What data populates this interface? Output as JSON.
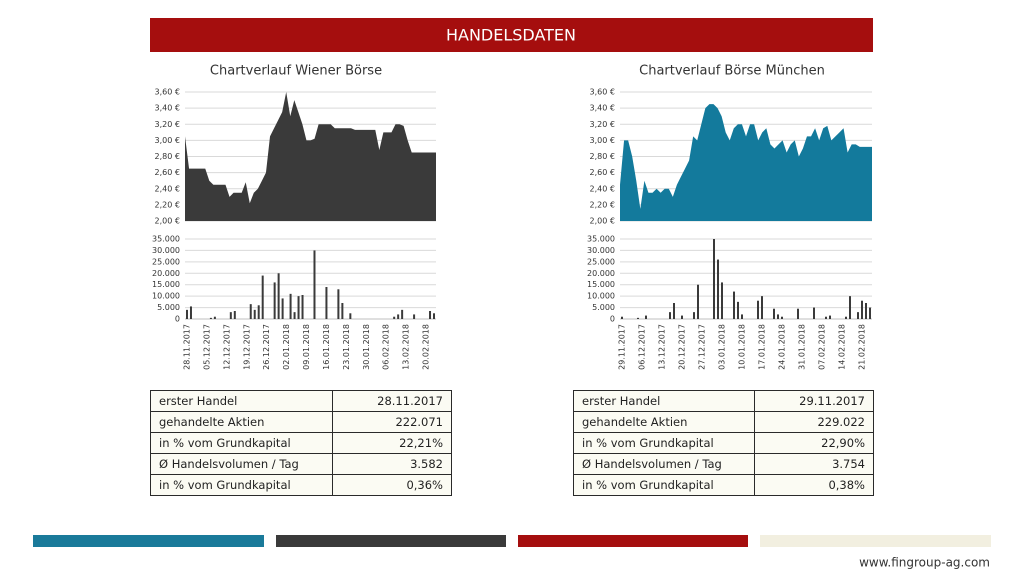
{
  "header": {
    "title": "HANDELSDATEN"
  },
  "chart_data": [
    {
      "type": "area",
      "title": "Chartverlauf Wiener Börse",
      "color": "#3a3a3a",
      "values": [
        3.05,
        2.65,
        2.65,
        2.65,
        2.65,
        2.65,
        2.5,
        2.45,
        2.45,
        2.45,
        2.45,
        2.3,
        2.35,
        2.35,
        2.35,
        2.48,
        2.22,
        2.35,
        2.4,
        2.5,
        2.6,
        3.05,
        3.15,
        3.25,
        3.35,
        3.6,
        3.3,
        3.5,
        3.35,
        3.2,
        3.0,
        3.0,
        3.02,
        3.2,
        3.2,
        3.2,
        3.2,
        3.15,
        3.15,
        3.15,
        3.15,
        3.15,
        3.13,
        3.13,
        3.13,
        3.13,
        3.13,
        3.13,
        2.88,
        3.1,
        3.1,
        3.1,
        3.2,
        3.2,
        3.18,
        3.0,
        2.85,
        2.85,
        2.85,
        2.85,
        2.85,
        2.85,
        2.85
      ],
      "ylim": [
        2,
        3.6
      ],
      "yticks": [
        {
          "value": 2,
          "label": "2,00 €"
        },
        {
          "value": 2.2,
          "label": "2,20 €"
        },
        {
          "value": 2.4,
          "label": "2,40 €"
        },
        {
          "value": 2.6,
          "label": "2,60 €"
        },
        {
          "value": 2.8,
          "label": "2,80 €"
        },
        {
          "value": 3,
          "label": "3,00 €"
        },
        {
          "value": 3.2,
          "label": "3,20 €"
        },
        {
          "value": 3.4,
          "label": "3,40 €"
        },
        {
          "value": 3.6,
          "label": "3,60 €"
        }
      ],
      "grid": true
    },
    {
      "type": "bar",
      "color": "#3a3a3a",
      "categories": [
        "28.11.2017",
        null,
        null,
        null,
        null,
        "05.12.2017",
        null,
        null,
        null,
        null,
        "12.12.2017",
        null,
        null,
        null,
        null,
        "19.12.2017",
        null,
        null,
        null,
        null,
        "26.12.2017",
        null,
        null,
        null,
        null,
        "02.01.2018",
        null,
        null,
        null,
        null,
        "09.01.2018",
        null,
        null,
        null,
        null,
        "16.01.2018",
        null,
        null,
        null,
        null,
        "23.01.2018",
        null,
        null,
        null,
        null,
        "30.01.2018",
        null,
        null,
        null,
        null,
        "06.02.2018",
        null,
        null,
        null,
        null,
        "13.02.2018",
        null,
        null,
        null,
        null,
        "20.02.2018",
        null,
        null
      ],
      "values": [
        4000,
        5500,
        0,
        0,
        0,
        0,
        500,
        1000,
        0,
        0,
        0,
        3000,
        3500,
        0,
        0,
        0,
        6500,
        4000,
        6000,
        19000,
        0,
        0,
        16000,
        20000,
        9000,
        0,
        11000,
        3000,
        10000,
        10500,
        0,
        0,
        30000,
        0,
        0,
        14000,
        0,
        0,
        13000,
        7000,
        0,
        2500,
        0,
        0,
        0,
        0,
        0,
        0,
        0,
        0,
        0,
        0,
        1000,
        2000,
        4000,
        0,
        0,
        2000,
        0,
        0,
        0,
        3500,
        2500
      ],
      "ylim": [
        0,
        35000
      ],
      "yticks": [
        0,
        {
          "value": 5000,
          "label": "5.000"
        },
        {
          "value": 10000,
          "label": "10.000"
        },
        {
          "value": 15000,
          "label": "15.000"
        },
        {
          "value": 20000,
          "label": "20.000"
        },
        {
          "value": 25000,
          "label": "25.000"
        },
        {
          "value": 30000,
          "label": "30.000"
        },
        {
          "value": 35000,
          "label": "35.000"
        }
      ],
      "grid": true
    },
    {
      "type": "area",
      "title": "Chartverlauf Börse München",
      "color": "#137a9c",
      "values": [
        2.45,
        3.0,
        3.0,
        2.8,
        2.5,
        2.15,
        2.5,
        2.35,
        2.35,
        2.4,
        2.35,
        2.4,
        2.4,
        2.3,
        2.45,
        2.55,
        2.65,
        2.75,
        3.05,
        3.0,
        3.2,
        3.4,
        3.45,
        3.45,
        3.4,
        3.3,
        3.1,
        3.0,
        3.15,
        3.2,
        3.2,
        3.05,
        3.2,
        3.2,
        3.0,
        3.1,
        3.15,
        2.95,
        2.9,
        2.95,
        3.0,
        2.85,
        2.95,
        3.0,
        2.8,
        2.9,
        3.05,
        3.05,
        3.15,
        3.0,
        3.15,
        3.18,
        3.0,
        3.05,
        3.1,
        3.15,
        2.85,
        2.95,
        2.95,
        2.92,
        2.92,
        2.92,
        2.92
      ],
      "ylim": [
        2,
        3.6
      ],
      "yticks": [
        {
          "value": 2,
          "label": "2,00 €"
        },
        {
          "value": 2.2,
          "label": "2,20 €"
        },
        {
          "value": 2.4,
          "label": "2,40 €"
        },
        {
          "value": 2.6,
          "label": "2,60 €"
        },
        {
          "value": 2.8,
          "label": "2,80 €"
        },
        {
          "value": 3,
          "label": "3,00 €"
        },
        {
          "value": 3.2,
          "label": "3,20 €"
        },
        {
          "value": 3.4,
          "label": "3,40 €"
        },
        {
          "value": 3.6,
          "label": "3,60 €"
        }
      ],
      "grid": true
    },
    {
      "type": "bar",
      "color": "#3a3a3a",
      "categories": [
        "29.11.2017",
        null,
        null,
        null,
        null,
        "06.12.2017",
        null,
        null,
        null,
        null,
        "13.12.2017",
        null,
        null,
        null,
        null,
        "20.12.2017",
        null,
        null,
        null,
        null,
        "27.12.2017",
        null,
        null,
        null,
        null,
        "03.01.2018",
        null,
        null,
        null,
        null,
        "10.01.2018",
        null,
        null,
        null,
        null,
        "17.01.2018",
        null,
        null,
        null,
        null,
        "24.01.2018",
        null,
        null,
        null,
        null,
        "31.01.2018",
        null,
        null,
        null,
        null,
        "07.02.2018",
        null,
        null,
        null,
        null,
        "14.02.2018",
        null,
        null,
        null,
        null,
        "21.02.2018",
        null,
        null
      ],
      "values": [
        1000,
        0,
        0,
        0,
        500,
        0,
        1500,
        0,
        0,
        0,
        0,
        0,
        3000,
        7000,
        0,
        1500,
        0,
        0,
        3000,
        15000,
        0,
        0,
        0,
        35000,
        26000,
        16000,
        0,
        0,
        12000,
        7500,
        2000,
        0,
        0,
        0,
        8000,
        10000,
        0,
        0,
        4500,
        2000,
        1000,
        0,
        0,
        0,
        4500,
        0,
        0,
        0,
        5000,
        0,
        0,
        1000,
        1500,
        0,
        0,
        0,
        1000,
        10000,
        0,
        3000,
        8000,
        7000,
        5000
      ],
      "ylim": [
        0,
        35000
      ],
      "yticks": [
        0,
        {
          "value": 5000,
          "label": "5.000"
        },
        {
          "value": 10000,
          "label": "10.000"
        },
        {
          "value": 15000,
          "label": "15.000"
        },
        {
          "value": 20000,
          "label": "20.000"
        },
        {
          "value": 25000,
          "label": "25.000"
        },
        {
          "value": 30000,
          "label": "30.000"
        },
        {
          "value": 35000,
          "label": "35.000"
        }
      ],
      "grid": true
    }
  ],
  "tables": [
    {
      "rows": [
        [
          "erster Handel",
          "28.11.2017"
        ],
        [
          "gehandelte Aktien",
          "222.071"
        ],
        [
          "in % vom Grundkapital",
          "22,21%"
        ],
        [
          "Ø Handelsvolumen / Tag",
          "3.582"
        ],
        [
          "in % vom Grundkapital",
          "0,36%"
        ]
      ]
    },
    {
      "rows": [
        [
          "erster Handel",
          "29.11.2017"
        ],
        [
          "gehandelte Aktien",
          "229.022"
        ],
        [
          "in % vom Grundkapital",
          "22,90%"
        ],
        [
          "Ø Handelsvolumen / Tag",
          "3.754"
        ],
        [
          "in % vom Grundkapital",
          "0,38%"
        ]
      ]
    }
  ],
  "footer": {
    "url": "www.fingroup-ag.com"
  }
}
